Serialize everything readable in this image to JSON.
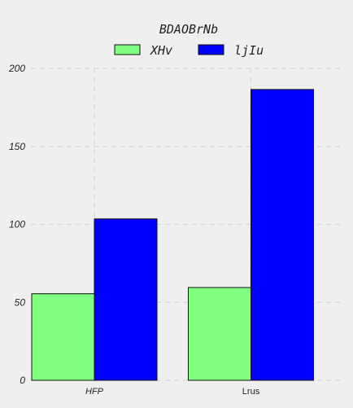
{
  "chart_data": {
    "type": "bar",
    "title": "BDAOBrNb",
    "xlabel": "",
    "ylabel": "",
    "categories": [
      "HFP",
      "Lrus"
    ],
    "series": [
      {
        "name": "XHv",
        "values": [
          55.5,
          59.5
        ],
        "color": "#80ff80"
      },
      {
        "name": "ljIu",
        "values": [
          103.5,
          186.5
        ],
        "color": "#0000ff"
      }
    ],
    "ylim": [
      0,
      200
    ],
    "yticks": [
      0,
      50,
      100,
      150,
      200
    ],
    "grid": true,
    "legend": "top-center"
  }
}
